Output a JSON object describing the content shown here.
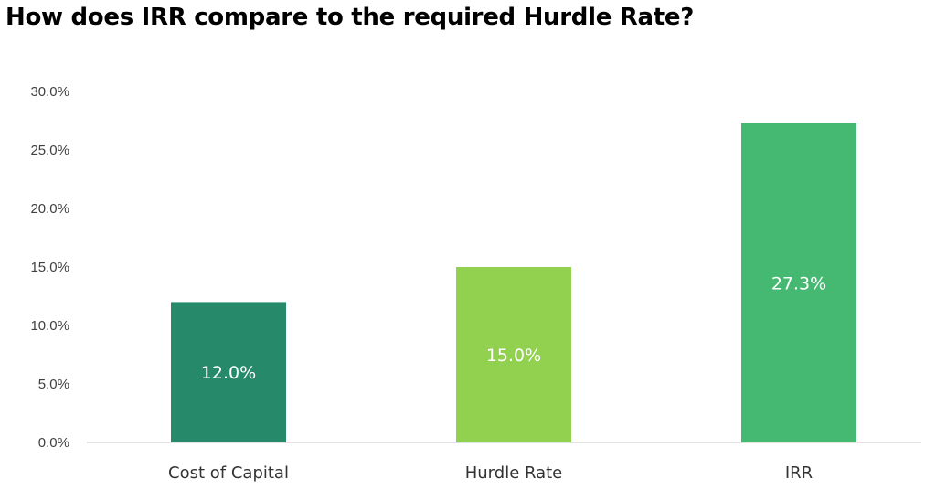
{
  "chart_data": {
    "type": "bar",
    "title": "How does IRR compare to the required Hurdle Rate?",
    "xlabel": "",
    "ylabel": "",
    "categories": [
      "Cost of Capital",
      "Hurdle Rate",
      "IRR"
    ],
    "values": [
      12.0,
      15.0,
      27.3
    ],
    "data_labels": [
      "12.0%",
      "15.0%",
      "27.3%"
    ],
    "bar_colors": [
      "#268a6a",
      "#92d050",
      "#45b872"
    ],
    "ylim": [
      0,
      30
    ],
    "y_ticks": [
      0,
      5,
      10,
      15,
      20,
      25,
      30
    ],
    "y_tick_labels": [
      "0.0%",
      "5.0%",
      "10.0%",
      "15.0%",
      "20.0%",
      "25.0%",
      "30.0%"
    ],
    "grid": false,
    "legend": "none"
  }
}
